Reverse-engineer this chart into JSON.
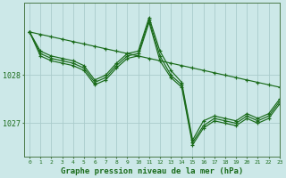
{
  "bg_color": "#cce8e8",
  "grid_color": "#aacccc",
  "line_color": "#1a6b1a",
  "xlabel": "Graphe pression niveau de la mer (hPa)",
  "xlabel_fontsize": 6.5,
  "yticks": [
    1027,
    1028
  ],
  "xlim": [
    -0.5,
    23
  ],
  "ylim": [
    1026.3,
    1029.5
  ],
  "series": [
    {
      "x": [
        0,
        1,
        2,
        3,
        4,
        5,
        6,
        7,
        8,
        9,
        10,
        11,
        12,
        13,
        14,
        15,
        16,
        17,
        18,
        19,
        20,
        21,
        22,
        23
      ],
      "y": [
        1028.9,
        1028.85,
        1028.8,
        1028.75,
        1028.7,
        1028.65,
        1028.6,
        1028.55,
        1028.5,
        1028.45,
        1028.4,
        1028.35,
        1028.3,
        1028.25,
        1028.2,
        1028.15,
        1028.1,
        1028.05,
        1028.0,
        1027.95,
        1027.9,
        1027.85,
        1027.8,
        1027.75
      ]
    },
    {
      "x": [
        0,
        1,
        2,
        3,
        4,
        5,
        6,
        7,
        8,
        9,
        10,
        11,
        12,
        13,
        14,
        15,
        16,
        17,
        18,
        19,
        20,
        21,
        22,
        23
      ],
      "y": [
        1028.9,
        1028.5,
        1028.4,
        1028.35,
        1028.3,
        1028.2,
        1027.9,
        1028.0,
        1028.25,
        1028.45,
        1028.5,
        1029.2,
        1028.5,
        1028.1,
        1027.85,
        1026.65,
        1027.05,
        1027.15,
        1027.1,
        1027.05,
        1027.2,
        1027.1,
        1027.2,
        1027.5
      ]
    },
    {
      "x": [
        0,
        1,
        2,
        3,
        4,
        5,
        6,
        7,
        8,
        9,
        10,
        11,
        12,
        13,
        14,
        15,
        16,
        17,
        18,
        19,
        20,
        21,
        22,
        23
      ],
      "y": [
        1028.9,
        1028.45,
        1028.35,
        1028.3,
        1028.25,
        1028.15,
        1027.85,
        1027.95,
        1028.2,
        1028.4,
        1028.45,
        1029.15,
        1028.4,
        1028.0,
        1027.8,
        1026.6,
        1026.95,
        1027.1,
        1027.05,
        1027.0,
        1027.15,
        1027.05,
        1027.15,
        1027.45
      ]
    },
    {
      "x": [
        0,
        1,
        2,
        3,
        4,
        5,
        6,
        7,
        8,
        9,
        10,
        11,
        12,
        13,
        14,
        15,
        16,
        17,
        18,
        19,
        20,
        21,
        22,
        23
      ],
      "y": [
        1028.9,
        1028.4,
        1028.3,
        1028.25,
        1028.2,
        1028.1,
        1027.8,
        1027.9,
        1028.15,
        1028.35,
        1028.4,
        1029.1,
        1028.3,
        1027.95,
        1027.75,
        1026.55,
        1026.9,
        1027.05,
        1027.0,
        1026.95,
        1027.1,
        1027.0,
        1027.1,
        1027.4
      ]
    }
  ]
}
